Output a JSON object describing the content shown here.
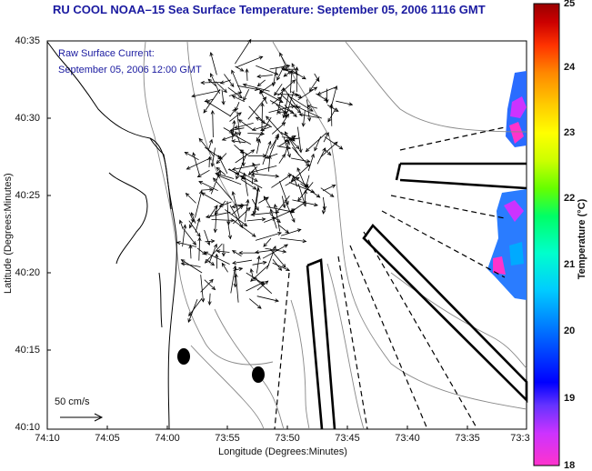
{
  "title": "RU COOL  NOAA–15  Sea Surface Temperature:  September 05, 2006 1116 GMT",
  "current_label": {
    "line1": "Raw Surface Current:",
    "line2": "September 05, 2006 12:00 GMT"
  },
  "axes": {
    "xlabel": "Longitude (Degrees:Minutes)",
    "ylabel": "Latitude (Degrees:Minutes)",
    "xticks": [
      "74:10",
      "74:05",
      "74:00",
      "73:55",
      "73:50",
      "73:45",
      "73:40",
      "73:35",
      "73:3"
    ],
    "yticks": [
      "40:35",
      "40:30",
      "40:25",
      "40:20",
      "40:15",
      "40:10"
    ]
  },
  "colorbar": {
    "label": "Temperature (°C)",
    "ticks": [
      "25",
      "24",
      "23",
      "22",
      "21",
      "20",
      "19",
      "18"
    ],
    "min": 18,
    "max": 25,
    "colors": [
      "#ff33cc",
      "#cc33ff",
      "#6633ff",
      "#0000ff",
      "#0066ff",
      "#00ccff",
      "#00ffcc",
      "#00ff66",
      "#66ff00",
      "#ccff00",
      "#ffff00",
      "#ffcc00",
      "#ff8800",
      "#ff3300",
      "#cc0000",
      "#990000"
    ]
  },
  "scale_label": "50 cm/s",
  "colors": {
    "title": "#1a1aa0",
    "coast": "#000000",
    "bathymetry": "#888888"
  }
}
